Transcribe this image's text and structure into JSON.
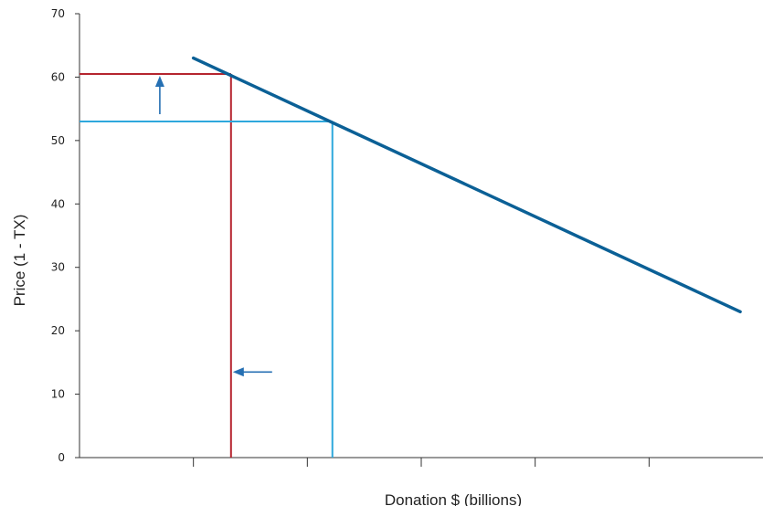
{
  "chart_data": {
    "type": "line",
    "xlabel": "Donation $ (billions)",
    "ylabel": "Price (1 - TX)",
    "ylim": [
      0,
      70
    ],
    "yticks": [
      "0",
      "10",
      "20",
      "30",
      "40",
      "50",
      "60",
      "70"
    ],
    "x_tick_count": 5,
    "grid": false,
    "series": [
      {
        "x": [
          1.0,
          5.8
        ],
        "y": [
          63,
          23
        ],
        "color": "#0b6096"
      }
    ],
    "reference_lines": [
      {
        "x": 1.33,
        "y": 60.5,
        "color": "#b5252f"
      },
      {
        "x": 2.22,
        "y": 53,
        "color": "#2ea8dc"
      }
    ],
    "arrows": [
      {
        "direction": "up",
        "color": "#2670b3"
      },
      {
        "direction": "left",
        "color": "#2670b3"
      }
    ]
  }
}
